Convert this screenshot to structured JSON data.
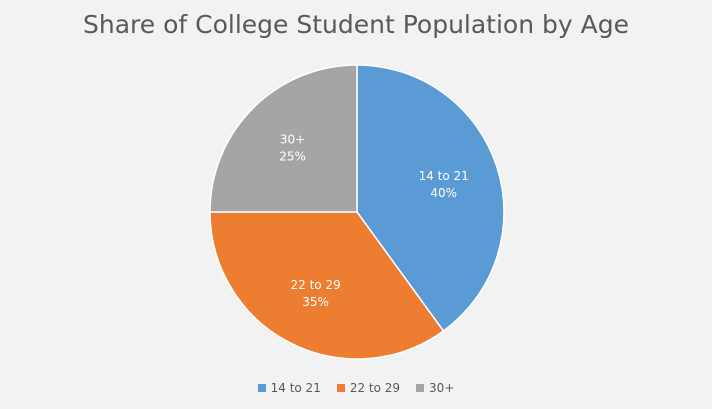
{
  "chart_data": {
    "type": "pie",
    "title": "Share of College Student Population by Age",
    "categories": [
      "14 to 21",
      "22 to 29",
      "30+"
    ],
    "values": [
      40,
      35,
      25
    ],
    "value_labels": [
      "40%",
      "35%",
      "25%"
    ],
    "colors": [
      "#5b9bd5",
      "#ed7d31",
      "#a5a5a5"
    ],
    "legend_position": "bottom",
    "start_angle_deg": 0,
    "direction": "clockwise"
  }
}
